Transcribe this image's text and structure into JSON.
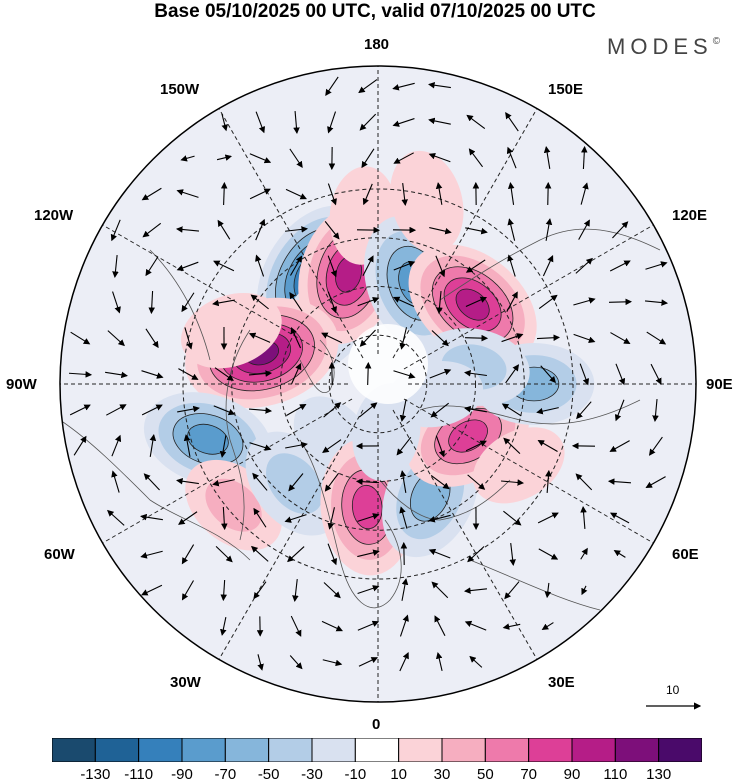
{
  "title": "Base 05/10/2025 00 UTC, valid 07/10/2025 00 UTC",
  "brand": "MODES",
  "brand_mark": "©",
  "lon_labels": {
    "l180": "180",
    "l150w": "150W",
    "l150e": "150E",
    "l120w": "120W",
    "l120e": "120E",
    "l90w": "90W",
    "l90e": "90E",
    "l60w": "60W",
    "l60e": "60E",
    "l30w": "30W",
    "l30e": "30E",
    "l0": "0"
  },
  "vector_reference": {
    "label": "10"
  },
  "colorbar": {
    "ticks": [
      "-130",
      "-110",
      "-90",
      "-70",
      "-50",
      "-30",
      "-10",
      "10",
      "30",
      "50",
      "70",
      "90",
      "110",
      "130"
    ],
    "colors": [
      "#1a4a6e",
      "#1f6296",
      "#3580bb",
      "#5a9ccd",
      "#86b6db",
      "#b3cde7",
      "#d9e1f0",
      "#ffffff",
      "#fbd3d8",
      "#f6aec0",
      "#ee7aab",
      "#dd3f97",
      "#b51d87",
      "#7d0f7a",
      "#4a0a6a"
    ]
  },
  "anomaly_centers": [
    {
      "lon": -150,
      "lat": 52,
      "value": -120
    },
    {
      "lon": -140,
      "lat": 65,
      "value": -50
    },
    {
      "lon": -165,
      "lat": 55,
      "value": 100
    },
    {
      "lon": -175,
      "lat": 38,
      "value": 20
    },
    {
      "lon": 160,
      "lat": 57,
      "value": -95
    },
    {
      "lon": 130,
      "lat": 52,
      "value": 105
    },
    {
      "lon": 165,
      "lat": 32,
      "value": 30
    },
    {
      "lon": -105,
      "lat": 53,
      "value": 125
    },
    {
      "lon": -110,
      "lat": 42,
      "value": 30
    },
    {
      "lon": -72,
      "lat": 35,
      "value": -80
    },
    {
      "lon": -50,
      "lat": 32,
      "value": 40
    },
    {
      "lon": -40,
      "lat": 50,
      "value": -55
    },
    {
      "lon": -38,
      "lat": 68,
      "value": -20
    },
    {
      "lon": -5,
      "lat": 52,
      "value": 90
    },
    {
      "lon": 25,
      "lat": 52,
      "value": -75
    },
    {
      "lon": 60,
      "lat": 58,
      "value": 80
    },
    {
      "lon": 60,
      "lat": 40,
      "value": 20
    },
    {
      "lon": 90,
      "lat": 42,
      "value": -60
    },
    {
      "lon": 100,
      "lat": 60,
      "value": -45
    },
    {
      "lon": 80,
      "lat": 72,
      "value": -15
    },
    {
      "lon": 10,
      "lat": 75,
      "value": -20
    }
  ]
}
